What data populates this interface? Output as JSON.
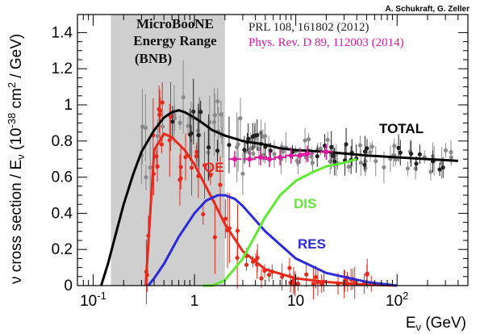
{
  "credit": "A. Schukraft, G. Zeller",
  "chart_data": {
    "type": "line",
    "xscale": "log",
    "xlim": [
      0.07,
      500
    ],
    "ylim": [
      0,
      1.5
    ],
    "xlabel_main": "E",
    "xlabel_sub": "ν",
    "xlabel_unit": " (GeV)",
    "ylabel": "ν cross section / E",
    "ylabel_sub": "ν",
    "ylabel_unit1": " (10",
    "ylabel_exp": "-38",
    "ylabel_unit2": " cm",
    "ylabel_exp2": "2",
    "ylabel_unit3": " / GeV)",
    "xticks": [
      {
        "value": 0.1,
        "base": "10",
        "exp": "-1"
      },
      {
        "value": 1,
        "base": "1",
        "exp": ""
      },
      {
        "value": 10,
        "base": "10",
        "exp": ""
      },
      {
        "value": 100,
        "base": "10",
        "exp": "2"
      }
    ],
    "yticks": [
      "0",
      "0.2",
      "0.4",
      "0.6",
      "0.8",
      "1",
      "1.2",
      "1.4"
    ],
    "band": {
      "x0": 0.15,
      "x1": 2.0,
      "label_lines": [
        "MicroBooNE",
        "Energy Range",
        "(BNB)"
      ]
    },
    "references": [
      {
        "text": "PRL 108, 161802 (2012)",
        "color": "#222222"
      },
      {
        "text": "Phys. Rev. D 89, 112003 (2014)",
        "color": "#e0169e"
      }
    ],
    "series": [
      {
        "name": "TOTAL",
        "color": "#000000",
        "x": [
          0.12,
          0.14,
          0.17,
          0.2,
          0.25,
          0.3,
          0.4,
          0.5,
          0.6,
          0.7,
          0.8,
          1.0,
          1.2,
          1.5,
          2,
          3,
          5,
          7,
          10,
          20,
          50,
          100,
          200,
          400
        ],
        "y": [
          0,
          0.12,
          0.3,
          0.45,
          0.62,
          0.74,
          0.86,
          0.93,
          0.96,
          0.97,
          0.96,
          0.93,
          0.9,
          0.86,
          0.83,
          0.8,
          0.78,
          0.76,
          0.75,
          0.74,
          0.72,
          0.71,
          0.7,
          0.69
        ]
      },
      {
        "name": "QE",
        "color": "#e8291c",
        "x": [
          0.33,
          0.4,
          0.5,
          0.6,
          0.8,
          1,
          1.5,
          2,
          3,
          5,
          10,
          20,
          50,
          100
        ],
        "y": [
          0,
          0.75,
          0.84,
          0.82,
          0.75,
          0.67,
          0.48,
          0.34,
          0.19,
          0.09,
          0.04,
          0.02,
          0.005,
          0.0
        ]
      },
      {
        "name": "RES",
        "color": "#2b2bdc",
        "x": [
          0.35,
          0.4,
          0.5,
          0.7,
          1,
          1.3,
          1.7,
          2,
          2.5,
          3,
          5,
          10,
          20,
          50,
          100
        ],
        "y": [
          0,
          0.04,
          0.12,
          0.27,
          0.4,
          0.47,
          0.5,
          0.5,
          0.48,
          0.44,
          0.3,
          0.15,
          0.07,
          0.02,
          0.0
        ]
      },
      {
        "name": "DIS",
        "color": "#5eea2e",
        "x": [
          1.2,
          1.5,
          2,
          3,
          4,
          5,
          7,
          10,
          15,
          20,
          30,
          40
        ],
        "y": [
          0,
          0.0,
          0.03,
          0.15,
          0.28,
          0.38,
          0.5,
          0.58,
          0.63,
          0.66,
          0.68,
          0.7
        ]
      }
    ],
    "labels": {
      "TOTAL": "TOTAL",
      "QE": "QE",
      "RES": "RES",
      "DIS": "DIS"
    },
    "ref_points": {
      "color": "#e0169e",
      "x": [
        2.5,
        3.5,
        4.5,
        5.5,
        7,
        9,
        11,
        13,
        20
      ],
      "y": [
        0.7,
        0.7,
        0.71,
        0.7,
        0.71,
        0.72,
        0.72,
        0.73,
        0.74
      ]
    }
  }
}
